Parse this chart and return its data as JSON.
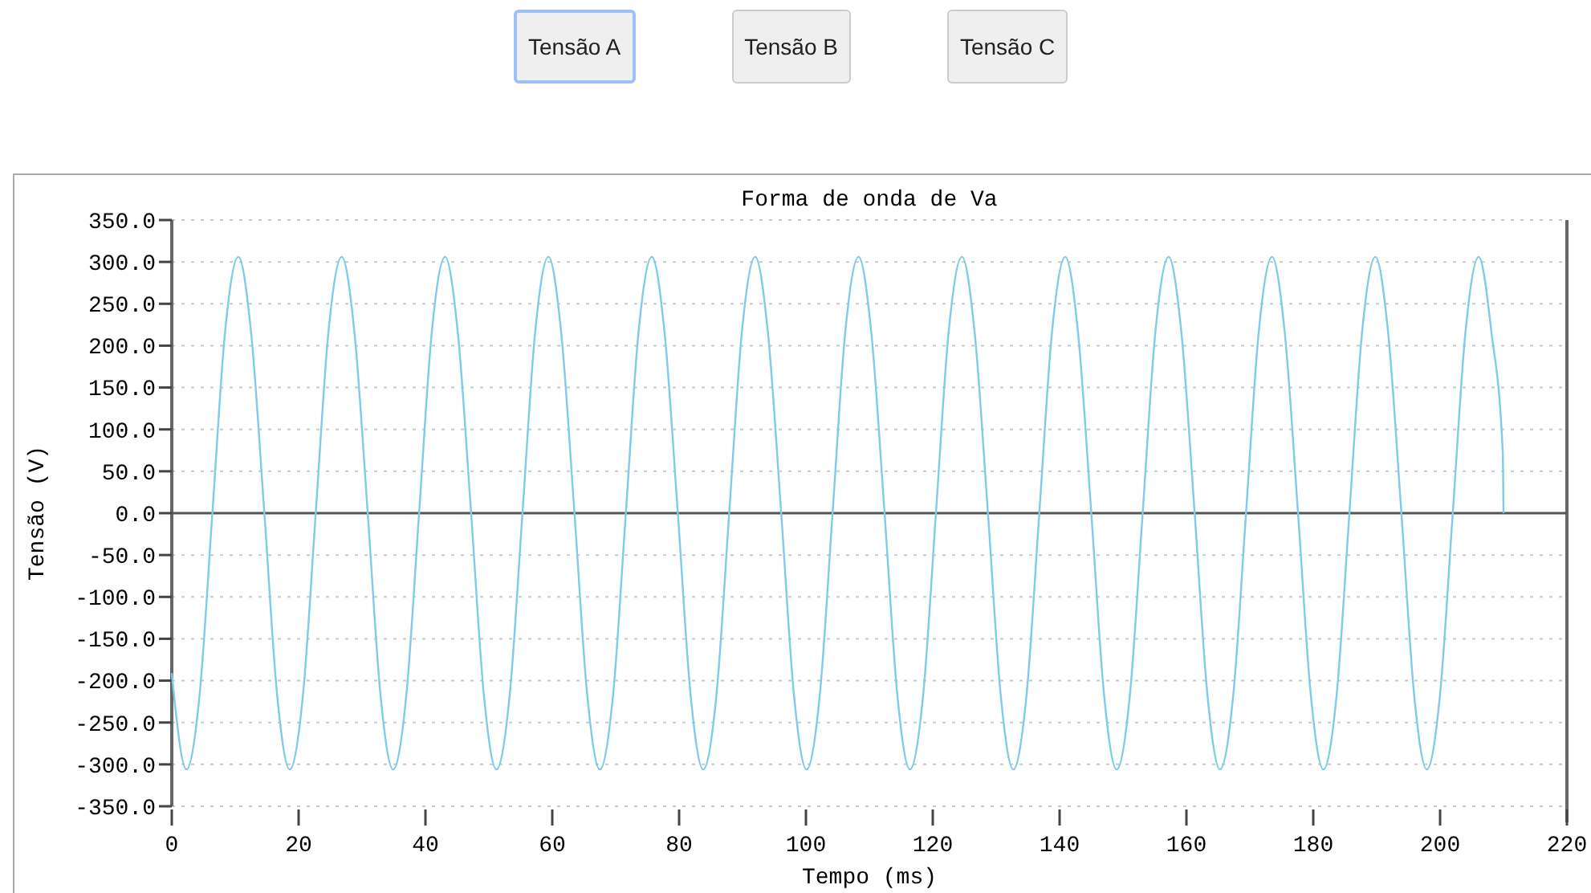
{
  "chart_data": {
    "type": "line",
    "title": "Forma de onda de Va",
    "xlabel": "Tempo (ms)",
    "ylabel": "Tensão (V)",
    "annotations": [
      "Tensão A",
      "Tensão B",
      "Tensão C"
    ],
    "xlim": [
      0,
      220
    ],
    "xticks": [
      0,
      20,
      40,
      60,
      80,
      100,
      120,
      140,
      160,
      180,
      200,
      220
    ],
    "ylim": [
      -350,
      350
    ],
    "yticks": [
      {
        "value": 350,
        "label": "350.0"
      },
      {
        "value": 300,
        "label": "300.0"
      },
      {
        "value": 250,
        "label": "250.0"
      },
      {
        "value": 200,
        "label": "200.0"
      },
      {
        "value": 150,
        "label": "150.0"
      },
      {
        "value": 100,
        "label": "100.0"
      },
      {
        "value": 50,
        "label": "50.0"
      },
      {
        "value": 0,
        "label": "0.0"
      },
      {
        "value": -50,
        "label": "-50.0"
      },
      {
        "value": -100,
        "label": "-100.0"
      },
      {
        "value": -150,
        "label": "-150.0"
      },
      {
        "value": -200,
        "label": "-200.0"
      },
      {
        "value": -250,
        "label": "-250.0"
      },
      {
        "value": -300,
        "label": "-300.0"
      },
      {
        "value": -350,
        "label": "-350.0"
      }
    ],
    "grid": "y",
    "marker": "none",
    "line_style": "solid",
    "ref_lines": [
      {
        "axis": "y",
        "value": 0,
        "color": "#555555"
      }
    ],
    "series": [
      {
        "color": "#7ecbea",
        "x": [
          0,
          2.3,
          4.4,
          6.4,
          8.4,
          10.5,
          12.5,
          14.6,
          16.6,
          18.6,
          20.7,
          22.7,
          24.7,
          26.8,
          28.8,
          30.9,
          32.9,
          34.9,
          37.0,
          39.0,
          41.0,
          43.1,
          45.1,
          47.2,
          49.2,
          51.2,
          53.3,
          55.3,
          57.3,
          59.4,
          61.4,
          63.5,
          65.5,
          67.5,
          69.6,
          71.6,
          73.6,
          75.7,
          77.7,
          79.8,
          81.8,
          83.8,
          85.9,
          87.9,
          89.9,
          92.0,
          94.0,
          96.1,
          98.1,
          100.1,
          102.2,
          104.2,
          106.2,
          108.3,
          110.3,
          112.4,
          114.4,
          116.4,
          118.5,
          120.5,
          122.5,
          124.6,
          126.6,
          128.7,
          130.7,
          132.7,
          134.8,
          136.8,
          138.8,
          140.9,
          142.9,
          145.0,
          147.0,
          149.0,
          151.1,
          153.1,
          155.1,
          157.2,
          159.2,
          161.3,
          163.3,
          165.3,
          167.4,
          169.4,
          171.4,
          173.5,
          175.5,
          177.6,
          179.6,
          181.6,
          183.7,
          185.7,
          187.7,
          189.8,
          191.8,
          193.9,
          195.9,
          197.9,
          200.0,
          202.0,
          204.0,
          206.1,
          208.1,
          209.9,
          210.0
        ],
        "values": [
          -191,
          -306,
          -216,
          0,
          216,
          306,
          216,
          0,
          -216,
          -306,
          -216,
          0,
          216,
          306,
          216,
          0,
          -216,
          -306,
          -216,
          0,
          216,
          306,
          216,
          0,
          -216,
          -306,
          -216,
          0,
          216,
          306,
          216,
          0,
          -216,
          -306,
          -216,
          0,
          216,
          306,
          216,
          0,
          -216,
          -306,
          -216,
          0,
          216,
          306,
          216,
          0,
          -216,
          -306,
          -216,
          0,
          216,
          306,
          216,
          0,
          -216,
          -306,
          -216,
          0,
          216,
          306,
          216,
          0,
          -216,
          -306,
          -216,
          0,
          216,
          306,
          216,
          0,
          -216,
          -306,
          -216,
          0,
          216,
          306,
          216,
          0,
          -216,
          -306,
          -216,
          0,
          216,
          306,
          216,
          0,
          -216,
          -306,
          -216,
          0,
          216,
          306,
          216,
          0,
          -216,
          -306,
          -216,
          0,
          216,
          306,
          216,
          70,
          0
        ]
      }
    ]
  }
}
